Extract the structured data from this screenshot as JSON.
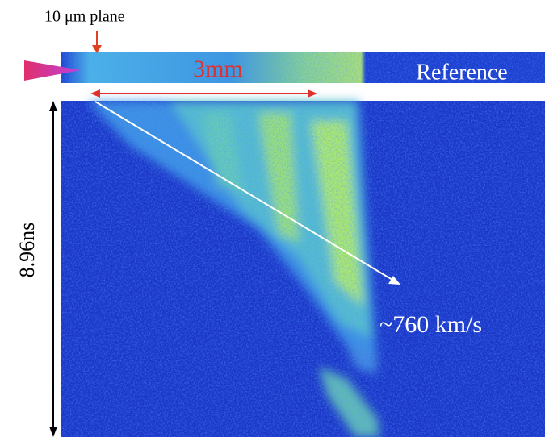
{
  "labels": {
    "plane": "10 μm plane",
    "scale": "3mm",
    "reference": "Reference",
    "time": "8.96ns",
    "velocity": "~760 km/s"
  }
}
